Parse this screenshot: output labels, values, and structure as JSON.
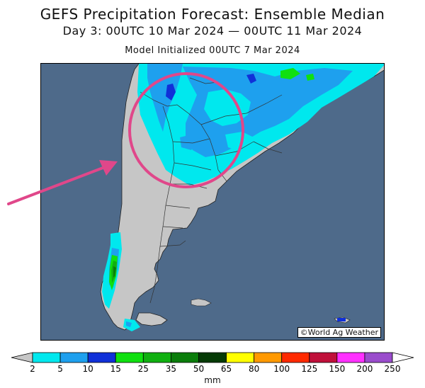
{
  "title": "GEFS Precipitation Forecast: Ensemble Median",
  "subtitle": "Day 3: 00UTC 10 Mar 2024 — 00UTC 11 Mar 2024",
  "init": "Model Initialized 00UTC 7 Mar 2024",
  "credit": "©World Ag Weather",
  "unit": "mm",
  "colors": {
    "ocean": "#4e6a8a",
    "land": "#c6c6c6",
    "highlight": "#e0478a"
  },
  "colorbar": {
    "levels": [
      "2",
      "5",
      "10",
      "15",
      "25",
      "35",
      "50",
      "65",
      "80",
      "100",
      "125",
      "150",
      "200",
      "250"
    ],
    "colors": [
      "#00e8ee",
      "#1ea0ee",
      "#1030d8",
      "#10e010",
      "#10b010",
      "#0a7d0a",
      "#053a05",
      "#ffff00",
      "#ff9900",
      "#ff2a00",
      "#c0103a",
      "#ff30ff",
      "#9a4ccc"
    ],
    "low_color": "#c6c6c6",
    "high_color": "#ffffff"
  }
}
